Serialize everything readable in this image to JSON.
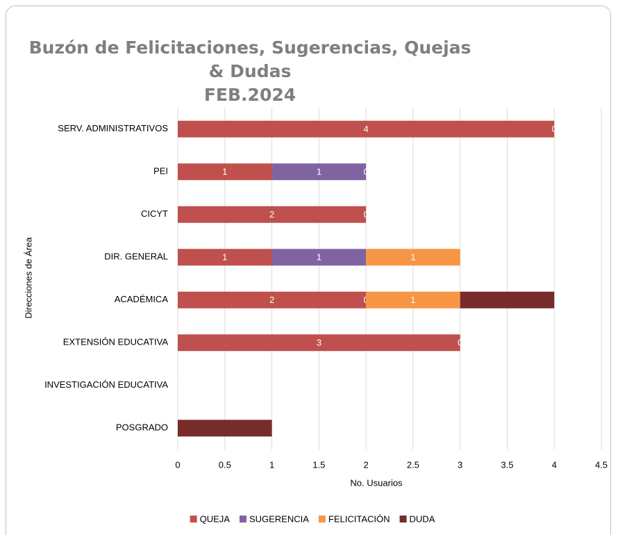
{
  "chart_data": {
    "type": "stacked-barh",
    "title": "Buzón de Felicitaciones, Sugerencias, Quejas & Dudas",
    "subtitle": "FEB.2024",
    "xlabel": "No. Usuarios",
    "ylabel": "Direcciones de Área",
    "categories": [
      "SERV. ADMINISTRATIVOS",
      "PEI",
      "CICYT",
      "DIR. GENERAL",
      "ACADÉMICA",
      "EXTENSIÓN EDUCATIVA",
      "INVESTIGACIÓN EDUCATIVA",
      "POSGRADO"
    ],
    "series": [
      {
        "name": "QUEJA",
        "color": "#c0504d",
        "values": [
          4,
          1,
          2,
          1,
          2,
          3,
          0,
          0
        ]
      },
      {
        "name": "SUGERENCIA",
        "color": "#8064a2",
        "values": [
          0,
          1,
          0,
          1,
          0,
          0,
          null,
          null
        ]
      },
      {
        "name": "FELICITACIÓN",
        "color": "#f79646",
        "values": [
          null,
          0,
          null,
          1,
          1,
          null,
          null,
          null
        ]
      },
      {
        "name": "DUDA",
        "color": "#772c2a",
        "values": [
          null,
          null,
          null,
          null,
          1,
          null,
          null,
          1
        ],
        "data_labels": false
      }
    ],
    "xlim": [
      0,
      4.5
    ],
    "xticks": [
      0,
      0.5,
      1,
      1.5,
      2,
      2.5,
      3,
      3.5,
      4,
      4.5
    ],
    "grid": true,
    "legend": "bottom"
  }
}
